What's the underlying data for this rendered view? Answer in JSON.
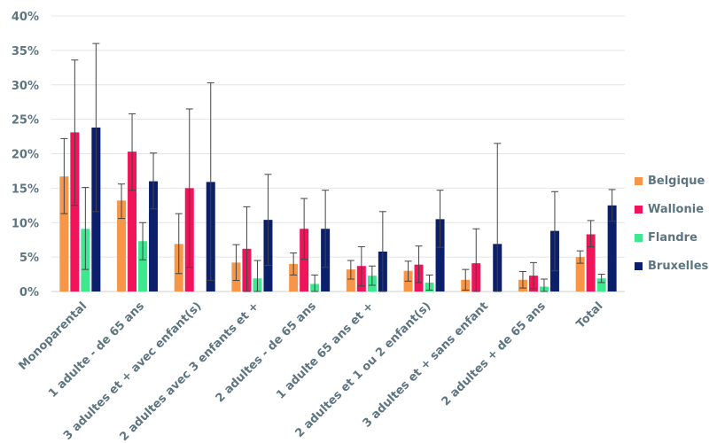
{
  "chart_data": {
    "type": "bar",
    "y_ticks": [
      "0%",
      "5%",
      "10%",
      "15%",
      "20%",
      "25%",
      "30%",
      "35%",
      "40%"
    ],
    "ylim": [
      0,
      40
    ],
    "grid": true,
    "legend_position": "right",
    "categories": [
      "Monoparental",
      "1 adulte - de 65 ans",
      "3 adultes et + avec enfant(s)",
      "2 adultes avec 3 enfants et +",
      "2 adultes - de 65 ans",
      "1 adulte 65 ans et +",
      "2 adultes et 1 ou 2 enfant(s)",
      "3 adultes et + sans enfant",
      "2 adultes + de 65 ans",
      "Total"
    ],
    "series": [
      {
        "name": "Belgique",
        "color": "#f79646",
        "values": [
          16.7,
          13.2,
          6.9,
          4.2,
          4.0,
          3.2,
          3.0,
          1.7,
          1.7,
          5.0
        ],
        "err_low": [
          11.3,
          10.6,
          2.6,
          1.6,
          2.4,
          1.8,
          1.5,
          0.2,
          0.5,
          4.1
        ],
        "err_high": [
          22.2,
          15.6,
          11.3,
          6.8,
          5.6,
          4.5,
          4.4,
          3.2,
          2.9,
          5.9
        ]
      },
      {
        "name": "Wallonie",
        "color": "#f0145a",
        "values": [
          23.1,
          20.3,
          15.0,
          6.2,
          9.1,
          3.7,
          3.9,
          4.1,
          2.3,
          8.3
        ],
        "err_low": [
          12.5,
          14.7,
          3.5,
          0.0,
          4.7,
          0.8,
          1.3,
          0.0,
          0.4,
          6.5
        ],
        "err_high": [
          33.6,
          25.8,
          26.5,
          12.3,
          13.5,
          6.5,
          6.6,
          9.1,
          4.2,
          10.3
        ]
      },
      {
        "name": "Flandre",
        "color": "#3ee88f",
        "values": [
          9.1,
          7.3,
          0.0,
          1.9,
          1.1,
          2.3,
          1.3,
          0.0,
          0.7,
          1.9
        ],
        "err_low": [
          3.2,
          4.6,
          0.0,
          0.0,
          0.0,
          0.9,
          0.2,
          0.0,
          0.0,
          1.3
        ],
        "err_high": [
          15.1,
          10.0,
          0.0,
          4.5,
          2.4,
          3.7,
          2.4,
          0.0,
          1.8,
          2.5
        ]
      },
      {
        "name": "Bruxelles",
        "color": "#0b1f6b",
        "values": [
          23.8,
          16.0,
          15.9,
          10.4,
          9.1,
          5.8,
          10.5,
          6.9,
          8.8,
          12.5
        ],
        "err_low": [
          11.6,
          12.0,
          1.6,
          3.8,
          3.5,
          0.0,
          6.4,
          0.0,
          3.0,
          10.2
        ],
        "err_high": [
          36.0,
          20.1,
          30.3,
          17.0,
          14.7,
          11.6,
          14.7,
          21.5,
          14.5,
          14.8
        ]
      }
    ]
  }
}
